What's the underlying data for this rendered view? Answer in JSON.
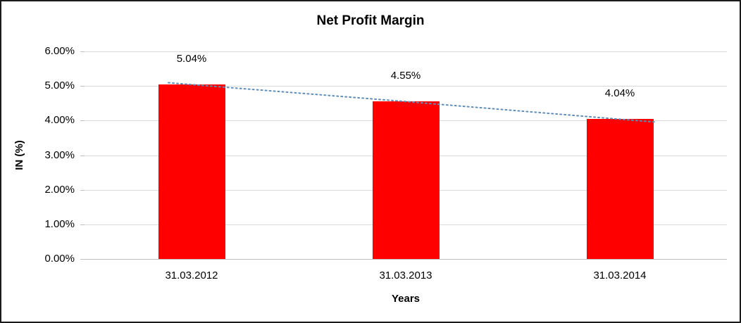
{
  "chart_data": {
    "type": "bar",
    "title": "Net Profit Margin",
    "categories": [
      "31.03.2012",
      "31.03.2013",
      "31.03.2014"
    ],
    "values": [
      5.04,
      4.55,
      4.04
    ],
    "data_labels": [
      "5.04%",
      "4.55%",
      "4.04%"
    ],
    "xlabel": "Years",
    "ylabel": "IN (%)",
    "ylim": [
      0,
      6
    ],
    "ytick_step": 1,
    "yticks": [
      "0.00%",
      "1.00%",
      "2.00%",
      "3.00%",
      "4.00%",
      "5.00%",
      "6.00%"
    ],
    "grid": true,
    "legend": "none",
    "bar_color": "#ff0000",
    "gridline_color": "#d9d9d9",
    "axis_color": "#bfbfbf",
    "trendline": {
      "style": "dotted",
      "color": "#5f8db8"
    }
  }
}
